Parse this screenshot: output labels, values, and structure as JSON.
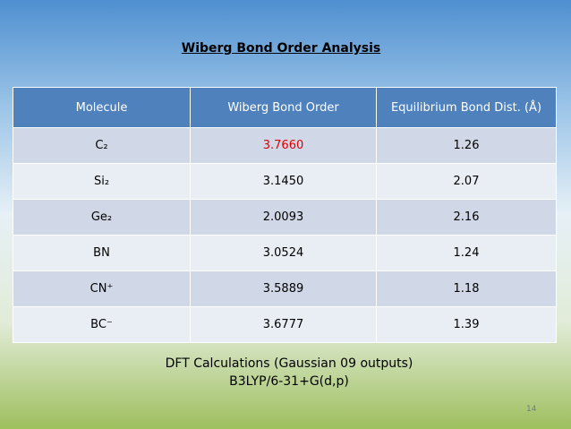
{
  "title": "Wiberg Bond Order Analysis",
  "table": {
    "header": [
      "Molecule",
      "Wiberg Bond Order",
      "Equilibrium Bond Dist. (Å)"
    ],
    "rows": [
      [
        "C₂",
        "3.7660",
        "1.26"
      ],
      [
        "Si₂",
        "3.1450",
        "2.07"
      ],
      [
        "Ge₂",
        "2.0093",
        "2.16"
      ],
      [
        "BN",
        "3.0524",
        "1.24"
      ],
      [
        "CN⁺",
        "3.5889",
        "1.18"
      ],
      [
        "BC⁻",
        "3.6777",
        "1.39"
      ]
    ]
  },
  "notes": [
    "DFT  Calculations (Gaussian 09 outputs)",
    "B3LYP/6-31+G(d,p)"
  ],
  "page_number": "14"
}
